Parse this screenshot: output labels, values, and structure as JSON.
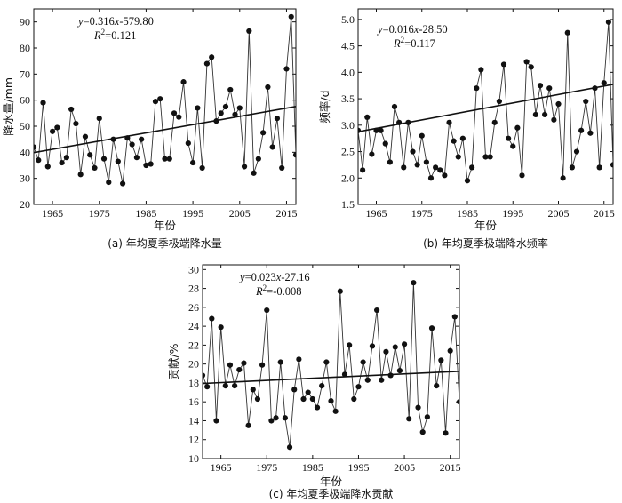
{
  "chart_data": [
    {
      "type": "line",
      "caption": "(a) 年均夏季极端降水量",
      "xlabel": "年份",
      "ylabel": "降水量/mm",
      "xlim": [
        1961,
        2017
      ],
      "ylim": [
        20,
        95
      ],
      "xticks": [
        1965,
        1975,
        1985,
        1995,
        2005,
        2015
      ],
      "yticks": [
        20,
        30,
        40,
        50,
        60,
        70,
        80,
        90
      ],
      "equation": {
        "line1_var": "y",
        "line1_rest": "=0.316",
        "line1_var2": "x",
        "line1_end": "-579.80",
        "line2_var": "R",
        "line2_sup": "2",
        "line2_end": "=0.121"
      },
      "trend": {
        "slope": 0.316,
        "intercept": -579.8
      },
      "x": [
        1961,
        1962,
        1963,
        1964,
        1965,
        1966,
        1967,
        1968,
        1969,
        1970,
        1971,
        1972,
        1973,
        1974,
        1975,
        1976,
        1977,
        1978,
        1979,
        1980,
        1981,
        1982,
        1983,
        1984,
        1985,
        1986,
        1987,
        1988,
        1989,
        1990,
        1991,
        1992,
        1993,
        1994,
        1995,
        1996,
        1997,
        1998,
        1999,
        2000,
        2001,
        2002,
        2003,
        2004,
        2005,
        2006,
        2007,
        2008,
        2009,
        2010,
        2011,
        2012,
        2013,
        2014,
        2015,
        2016,
        2017
      ],
      "values": [
        42,
        37,
        59,
        34.5,
        48,
        49.5,
        36,
        38,
        56.5,
        51,
        31.5,
        46,
        39,
        34,
        53,
        37.5,
        28.5,
        45,
        36.5,
        28,
        45.5,
        43,
        38,
        45,
        35,
        35.5,
        59.5,
        60.5,
        37.5,
        37.5,
        55,
        53.5,
        67,
        43.5,
        36,
        57,
        34,
        74,
        76.5,
        52,
        55,
        57.5,
        64,
        54.5,
        57,
        34.5,
        86.5,
        32,
        37.5,
        47.5,
        65,
        42,
        53,
        34,
        72,
        92,
        39
      ]
    },
    {
      "type": "line",
      "caption": "(b) 年均夏季极端降水频率",
      "xlabel": "年份",
      "ylabel": "频率/d",
      "xlim": [
        1961,
        2017
      ],
      "ylim": [
        1.5,
        5.2
      ],
      "xticks": [
        1965,
        1975,
        1985,
        1995,
        2005,
        2015
      ],
      "yticks": [
        1.5,
        2.0,
        2.5,
        3.0,
        3.5,
        4.0,
        4.5,
        5.0
      ],
      "equation": {
        "line1_var": "y",
        "line1_rest": "=0.016",
        "line1_var2": "x",
        "line1_end": "-28.50",
        "line2_var": "R",
        "line2_sup": "2",
        "line2_end": "=0.117"
      },
      "trend": {
        "slope": 0.016,
        "intercept": -28.5
      },
      "x": [
        1961,
        1962,
        1963,
        1964,
        1965,
        1966,
        1967,
        1968,
        1969,
        1970,
        1971,
        1972,
        1973,
        1974,
        1975,
        1976,
        1977,
        1978,
        1979,
        1980,
        1981,
        1982,
        1983,
        1984,
        1985,
        1986,
        1987,
        1988,
        1989,
        1990,
        1991,
        1992,
        1993,
        1994,
        1995,
        1996,
        1997,
        1998,
        1999,
        2000,
        2001,
        2002,
        2003,
        2004,
        2005,
        2006,
        2007,
        2008,
        2009,
        2010,
        2011,
        2012,
        2013,
        2014,
        2015,
        2016,
        2017
      ],
      "values": [
        2.9,
        2.15,
        3.15,
        2.45,
        2.9,
        2.9,
        2.65,
        2.3,
        3.35,
        3.05,
        2.2,
        3.05,
        2.5,
        2.25,
        2.8,
        2.3,
        2.0,
        2.2,
        2.15,
        2.05,
        3.05,
        2.7,
        2.4,
        2.75,
        1.95,
        2.2,
        3.7,
        4.05,
        2.4,
        2.4,
        3.05,
        3.45,
        4.15,
        2.75,
        2.6,
        2.95,
        2.05,
        4.2,
        4.1,
        3.2,
        3.75,
        3.2,
        3.7,
        3.1,
        3.4,
        2.0,
        4.75,
        2.2,
        2.5,
        2.9,
        3.45,
        2.85,
        3.7,
        2.2,
        3.8,
        4.95,
        2.25
      ]
    },
    {
      "type": "line",
      "caption": "(c) 年均夏季极端降水贡献",
      "xlabel": "年份",
      "ylabel": "贡献/%",
      "xlim": [
        1961,
        2017
      ],
      "ylim": [
        10,
        30.5
      ],
      "xticks": [
        1965,
        1975,
        1985,
        1995,
        2005,
        2015
      ],
      "yticks": [
        10,
        12,
        14,
        16,
        18,
        20,
        22,
        24,
        26,
        28,
        30
      ],
      "equation": {
        "line1_var": "y",
        "line1_rest": "=0.023",
        "line1_var2": "x",
        "line1_end": "-27.16",
        "line2_var": "R",
        "line2_sup": "2",
        "line2_end": "=-0.008"
      },
      "trend": {
        "slope": 0.023,
        "intercept": -27.16
      },
      "x": [
        1961,
        1962,
        1963,
        1964,
        1965,
        1966,
        1967,
        1968,
        1969,
        1970,
        1971,
        1972,
        1973,
        1974,
        1975,
        1976,
        1977,
        1978,
        1979,
        1980,
        1981,
        1982,
        1983,
        1984,
        1985,
        1986,
        1987,
        1988,
        1989,
        1990,
        1991,
        1992,
        1993,
        1994,
        1995,
        1996,
        1997,
        1998,
        1999,
        2000,
        2001,
        2002,
        2003,
        2004,
        2005,
        2006,
        2007,
        2008,
        2009,
        2010,
        2011,
        2012,
        2013,
        2014,
        2015,
        2016,
        2017
      ],
      "values": [
        18.8,
        17.6,
        24.8,
        14,
        23.9,
        17.7,
        19.9,
        17.7,
        19.4,
        20.1,
        13.5,
        17.3,
        16.3,
        19.9,
        25.7,
        14,
        14.3,
        20.2,
        14.3,
        11.2,
        17.3,
        20.5,
        16.3,
        17,
        16.3,
        15.4,
        17.7,
        20.2,
        16.1,
        15,
        27.7,
        18.9,
        22,
        16.3,
        17.6,
        20.2,
        18.3,
        21.9,
        25.7,
        18.3,
        21.3,
        18.8,
        21.8,
        19.3,
        22.1,
        14.2,
        28.6,
        15.4,
        12.8,
        14.4,
        23.8,
        17.7,
        20.4,
        12.7,
        21.4,
        25,
        16
      ]
    }
  ]
}
